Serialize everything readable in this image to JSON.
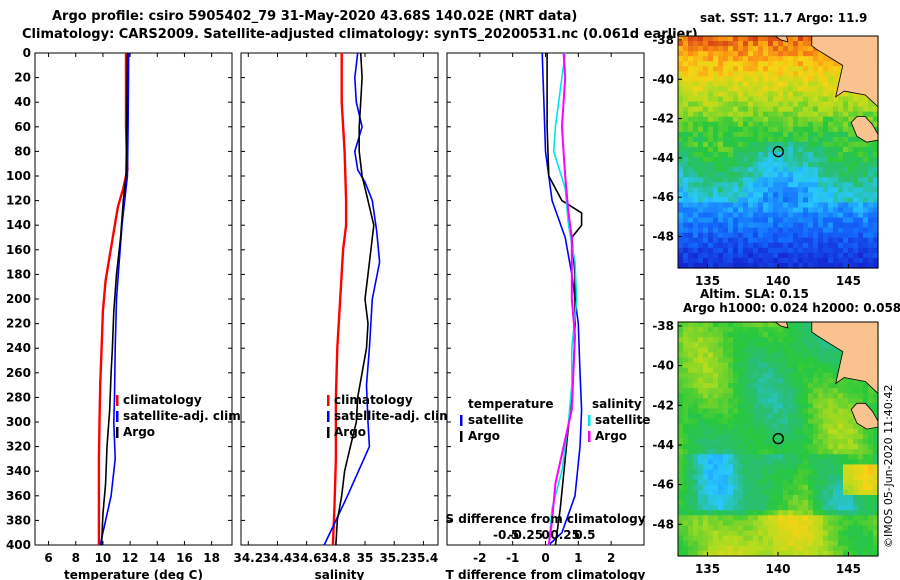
{
  "chart_data": {
    "title_line1": "Argo profile: csiro 5905402_79 31-May-2020 43.68S 140.02E (NRT data)",
    "title_line2": "Climatology: CARS2009. Satellite-adjusted climatology: synTS_20200531.nc (0.061d earlier)",
    "depth_axis": {
      "range": [
        0,
        400
      ],
      "ticks": [
        0,
        20,
        40,
        60,
        80,
        100,
        120,
        140,
        160,
        180,
        200,
        220,
        240,
        260,
        280,
        300,
        320,
        340,
        360,
        380,
        400
      ]
    },
    "panels": [
      {
        "id": "temperature",
        "type": "line",
        "xlabel": "temperature (deg C)",
        "xlim": [
          5,
          19.5
        ],
        "xticks": [
          6,
          8,
          10,
          12,
          14,
          16,
          18
        ],
        "xtick_labels": [
          "6",
          "8",
          "10",
          "12",
          "14",
          "16",
          "18"
        ],
        "legend": [
          "climatology",
          "satellite-adj. clim.",
          "Argo"
        ],
        "series": [
          {
            "name": "climatology",
            "color": "#ff0000",
            "width": 2.4,
            "points": [
              [
                11.7,
                0
              ],
              [
                11.7,
                60
              ],
              [
                11.8,
                95
              ],
              [
                11.5,
                110
              ],
              [
                11.1,
                125
              ],
              [
                10.8,
                145
              ],
              [
                10.5,
                165
              ],
              [
                10.2,
                185
              ],
              [
                10.0,
                210
              ],
              [
                9.9,
                240
              ],
              [
                9.8,
                270
              ],
              [
                9.75,
                300
              ],
              [
                9.7,
                330
              ],
              [
                9.7,
                360
              ],
              [
                9.7,
                400
              ]
            ]
          },
          {
            "name": "satellite-adj. clim.",
            "color": "#0000ff",
            "width": 1.6,
            "points": [
              [
                11.9,
                0
              ],
              [
                11.85,
                60
              ],
              [
                11.8,
                100
              ],
              [
                11.4,
                140
              ],
              [
                11.2,
                170
              ],
              [
                11.0,
                200
              ],
              [
                10.9,
                240
              ],
              [
                10.85,
                280
              ],
              [
                10.8,
                300
              ],
              [
                10.9,
                330
              ],
              [
                10.6,
                360
              ],
              [
                10.0,
                390
              ],
              [
                9.8,
                400
              ]
            ]
          },
          {
            "name": "Argo",
            "color": "#000000",
            "width": 1.6,
            "points": [
              [
                11.8,
                0
              ],
              [
                11.75,
                60
              ],
              [
                11.7,
                100
              ],
              [
                11.5,
                120
              ],
              [
                11.3,
                150
              ],
              [
                11.0,
                180
              ],
              [
                10.8,
                210
              ],
              [
                10.7,
                240
              ],
              [
                10.6,
                260
              ],
              [
                10.5,
                290
              ],
              [
                10.3,
                320
              ],
              [
                10.2,
                350
              ],
              [
                10.0,
                375
              ],
              [
                9.9,
                400
              ]
            ]
          }
        ]
      },
      {
        "id": "salinity",
        "type": "line",
        "xlabel": "salinity",
        "xlim": [
          34.15,
          35.5
        ],
        "xticks": [
          34.2,
          34.4,
          34.6,
          34.8,
          35.0,
          35.2,
          35.4
        ],
        "xtick_labels": [
          "34.2",
          "34.4",
          "34.6",
          "34.8",
          "35",
          "35.2",
          "35.4"
        ],
        "legend": [
          "climatology",
          "satellite-adj. clim.",
          "Argo"
        ],
        "series": [
          {
            "name": "climatology",
            "color": "#ff0000",
            "width": 2.4,
            "points": [
              [
                34.84,
                0
              ],
              [
                34.84,
                40
              ],
              [
                34.86,
                80
              ],
              [
                34.87,
                120
              ],
              [
                34.87,
                140
              ],
              [
                34.85,
                160
              ],
              [
                34.83,
                200
              ],
              [
                34.81,
                240
              ],
              [
                34.8,
                280
              ],
              [
                34.8,
                330
              ],
              [
                34.79,
                370
              ],
              [
                34.78,
                400
              ]
            ]
          },
          {
            "name": "satellite-adj. clim.",
            "color": "#0000ff",
            "width": 1.6,
            "points": [
              [
                34.95,
                0
              ],
              [
                34.93,
                20
              ],
              [
                34.94,
                40
              ],
              [
                34.98,
                60
              ],
              [
                34.93,
                80
              ],
              [
                34.95,
                95
              ],
              [
                35.0,
                105
              ],
              [
                35.05,
                120
              ],
              [
                35.08,
                145
              ],
              [
                35.1,
                170
              ],
              [
                35.05,
                200
              ],
              [
                35.03,
                240
              ],
              [
                35.01,
                270
              ],
              [
                35.02,
                300
              ],
              [
                35.03,
                320
              ],
              [
                34.88,
                360
              ],
              [
                34.8,
                380
              ],
              [
                34.72,
                400
              ]
            ]
          },
          {
            "name": "Argo",
            "color": "#000000",
            "width": 1.6,
            "points": [
              [
                34.97,
                0
              ],
              [
                34.98,
                20
              ],
              [
                34.97,
                40
              ],
              [
                34.96,
                60
              ],
              [
                34.96,
                80
              ],
              [
                34.98,
                100
              ],
              [
                35.02,
                120
              ],
              [
                35.06,
                140
              ],
              [
                35.04,
                160
              ],
              [
                35.02,
                180
              ],
              [
                35.0,
                200
              ],
              [
                35.02,
                220
              ],
              [
                35.01,
                240
              ],
              [
                34.98,
                260
              ],
              [
                34.95,
                280
              ],
              [
                34.94,
                300
              ],
              [
                34.9,
                320
              ],
              [
                34.86,
                340
              ],
              [
                34.84,
                360
              ],
              [
                34.81,
                380
              ],
              [
                34.8,
                400
              ]
            ]
          }
        ]
      },
      {
        "id": "difference",
        "type": "line",
        "xlabel": "T difference from climatology",
        "xlim": [
          -3,
          3
        ],
        "xticks": [
          -2,
          -1,
          0,
          1,
          2
        ],
        "xtick_labels": [
          "-2",
          "-1",
          "0",
          "1",
          "2"
        ],
        "secondary_label": "S difference from climatology",
        "secondary_ticks": [
          "-0.5",
          "-0.25",
          "0",
          "0.25",
          "0.5"
        ],
        "secondary_tick_values": [
          -2,
          -1,
          0,
          1,
          2
        ],
        "legend_temperature_title": "temperature",
        "legend_salinity_title": "salinity",
        "legend_temperature": [
          "satellite",
          "Argo"
        ],
        "legend_salinity": [
          "satellite",
          "Argo"
        ],
        "series": [
          {
            "name": "T satellite",
            "color": "#0000ff",
            "width": 1.6,
            "points": [
              [
                -0.1,
                0
              ],
              [
                -0.05,
                40
              ],
              [
                0.0,
                80
              ],
              [
                0.2,
                120
              ],
              [
                0.6,
                150
              ],
              [
                0.8,
                180
              ],
              [
                1.0,
                220
              ],
              [
                1.05,
                260
              ],
              [
                1.1,
                290
              ],
              [
                1.05,
                320
              ],
              [
                0.9,
                360
              ],
              [
                0.5,
                390
              ],
              [
                0.1,
                400
              ]
            ]
          },
          {
            "name": "T Argo",
            "color": "#000000",
            "width": 1.6,
            "points": [
              [
                0.05,
                0
              ],
              [
                0.05,
                60
              ],
              [
                0.1,
                100
              ],
              [
                0.5,
                120
              ],
              [
                1.1,
                130
              ],
              [
                1.1,
                140
              ],
              [
                0.8,
                150
              ],
              [
                0.9,
                180
              ],
              [
                0.9,
                220
              ],
              [
                0.85,
                260
              ],
              [
                0.75,
                290
              ],
              [
                0.6,
                330
              ],
              [
                0.45,
                370
              ],
              [
                0.3,
                400
              ]
            ]
          },
          {
            "name": "S satellite",
            "color": "#00e5e5",
            "width": 1.6,
            "points": [
              [
                0.6,
                0
              ],
              [
                0.5,
                20
              ],
              [
                0.3,
                60
              ],
              [
                0.25,
                80
              ],
              [
                0.6,
                110
              ],
              [
                0.7,
                140
              ],
              [
                0.9,
                170
              ],
              [
                0.95,
                200
              ],
              [
                0.8,
                240
              ],
              [
                0.8,
                270
              ],
              [
                0.7,
                300
              ],
              [
                0.5,
                340
              ],
              [
                0.2,
                370
              ],
              [
                0.1,
                400
              ]
            ]
          },
          {
            "name": "S Argo",
            "color": "#ff00ff",
            "width": 2.0,
            "points": [
              [
                0.55,
                0
              ],
              [
                0.6,
                20
              ],
              [
                0.5,
                60
              ],
              [
                0.6,
                100
              ],
              [
                0.7,
                130
              ],
              [
                0.8,
                150
              ],
              [
                0.8,
                200
              ],
              [
                0.9,
                230
              ],
              [
                0.85,
                260
              ],
              [
                0.8,
                290
              ],
              [
                0.55,
                320
              ],
              [
                0.3,
                350
              ],
              [
                0.2,
                380
              ],
              [
                0.1,
                400
              ]
            ]
          }
        ]
      }
    ],
    "maps": [
      {
        "id": "sst-map",
        "type": "heatmap",
        "title": "sat. SST: 11.7 Argo: 11.9",
        "yticks": [
          -38,
          -40,
          -42,
          -44,
          -46,
          -48
        ],
        "ytick_labels": [
          "-38",
          "-40",
          "-42",
          "-44",
          "-46",
          "-48"
        ],
        "xticks": [
          135,
          140,
          145
        ],
        "xtick_labels": [
          "135",
          "140",
          "145"
        ],
        "lon_range": [
          132.9,
          147.1
        ],
        "lat_range": [
          -49.6,
          -37.8
        ],
        "argo_lon": 140.02,
        "argo_lat": -43.68,
        "variant": "sst"
      },
      {
        "id": "sla-map",
        "type": "heatmap",
        "title": "Altim. SLA: 0.15",
        "title2": "Argo h1000: 0.024 h2000: 0.058",
        "yticks": [
          -38,
          -40,
          -42,
          -44,
          -46,
          -48
        ],
        "ytick_labels": [
          "-38",
          "-40",
          "-42",
          "-44",
          "-46",
          "-48"
        ],
        "xticks": [
          135,
          140,
          145
        ],
        "xtick_labels": [
          "135",
          "140",
          "145"
        ],
        "lon_range": [
          132.9,
          147.1
        ],
        "lat_range": [
          -49.6,
          -37.8
        ],
        "argo_lon": 140.02,
        "argo_lat": -43.68,
        "variant": "sla"
      }
    ],
    "credit": "©IMOS 05-Jun-2020 11:40:42"
  },
  "colors": {
    "climatology": "#ff0000",
    "satellite": "#0000ff",
    "argo": "#000000",
    "s_satellite": "#00e5e5",
    "s_argo": "#ff00ff",
    "land": "#f9c28f"
  }
}
